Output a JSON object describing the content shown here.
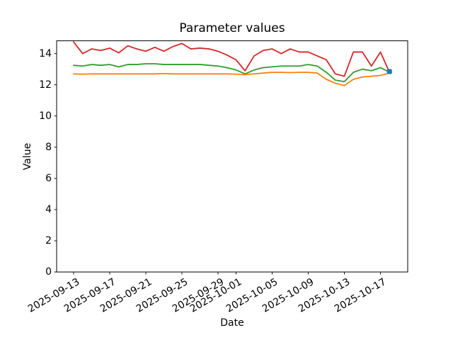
{
  "figure": {
    "background": "#ffffff",
    "axis_color": "#000000"
  },
  "chart_data": {
    "type": "line",
    "title": "Parameter values",
    "xlabel": "Date",
    "ylabel": "Value",
    "grid": false,
    "legend": false,
    "ylim": [
      0,
      14.82
    ],
    "y_ticks": [
      0,
      2,
      4,
      6,
      8,
      10,
      12,
      14
    ],
    "x_tick_rotation_deg": 30,
    "x_ticks": [
      {
        "label": "2025-09-13",
        "day_index": 0
      },
      {
        "label": "2025-09-17",
        "day_index": 4
      },
      {
        "label": "2025-09-21",
        "day_index": 8
      },
      {
        "label": "2025-09-25",
        "day_index": 12
      },
      {
        "label": "2025-09-29",
        "day_index": 16
      },
      {
        "label": "2025-10-01",
        "day_index": 18
      },
      {
        "label": "2025-10-05",
        "day_index": 22
      },
      {
        "label": "2025-10-09",
        "day_index": 26
      },
      {
        "label": "2025-10-13",
        "day_index": 30
      },
      {
        "label": "2025-10-17",
        "day_index": 34
      }
    ],
    "x_dates": [
      "2025-09-13",
      "2025-09-14",
      "2025-09-15",
      "2025-09-16",
      "2025-09-17",
      "2025-09-18",
      "2025-09-19",
      "2025-09-20",
      "2025-09-21",
      "2025-09-22",
      "2025-09-23",
      "2025-09-24",
      "2025-09-25",
      "2025-09-26",
      "2025-09-27",
      "2025-09-28",
      "2025-09-29",
      "2025-09-30",
      "2025-10-01",
      "2025-10-02",
      "2025-10-03",
      "2025-10-04",
      "2025-10-05",
      "2025-10-06",
      "2025-10-07",
      "2025-10-08",
      "2025-10-09",
      "2025-10-10",
      "2025-10-11",
      "2025-10-12",
      "2025-10-13",
      "2025-10-14",
      "2025-10-15",
      "2025-10-16",
      "2025-10-17",
      "2025-10-18"
    ],
    "series": [
      {
        "name": "red",
        "color": "#d62728",
        "values": [
          14.75,
          14.0,
          14.3,
          14.2,
          14.35,
          14.05,
          14.5,
          14.3,
          14.15,
          14.4,
          14.15,
          14.45,
          14.65,
          14.3,
          14.35,
          14.3,
          14.15,
          13.9,
          13.6,
          12.9,
          13.85,
          14.2,
          14.3,
          14.0,
          14.3,
          14.1,
          14.1,
          13.85,
          13.6,
          12.7,
          12.55,
          14.1,
          14.1,
          13.2,
          14.1,
          12.8
        ]
      },
      {
        "name": "green",
        "color": "#2ca02c",
        "values": [
          13.25,
          13.2,
          13.3,
          13.25,
          13.3,
          13.15,
          13.3,
          13.3,
          13.35,
          13.35,
          13.3,
          13.3,
          13.3,
          13.3,
          13.3,
          13.25,
          13.2,
          13.1,
          12.95,
          12.7,
          12.95,
          13.1,
          13.15,
          13.2,
          13.2,
          13.2,
          13.3,
          13.2,
          12.8,
          12.3,
          12.2,
          12.8,
          13.0,
          12.9,
          13.1,
          12.8
        ]
      },
      {
        "name": "orange",
        "color": "#ff7f0e",
        "values": [
          12.7,
          12.68,
          12.7,
          12.7,
          12.7,
          12.7,
          12.7,
          12.7,
          12.7,
          12.7,
          12.72,
          12.7,
          12.7,
          12.7,
          12.7,
          12.7,
          12.7,
          12.7,
          12.68,
          12.65,
          12.7,
          12.75,
          12.8,
          12.8,
          12.78,
          12.8,
          12.8,
          12.75,
          12.35,
          12.1,
          11.95,
          12.35,
          12.5,
          12.55,
          12.6,
          12.75
        ]
      },
      {
        "name": "blue-endpoint",
        "color": "#1f77b4",
        "marker": "square",
        "points": [
          {
            "date": "2025-10-18",
            "value": 12.85
          }
        ]
      }
    ]
  }
}
